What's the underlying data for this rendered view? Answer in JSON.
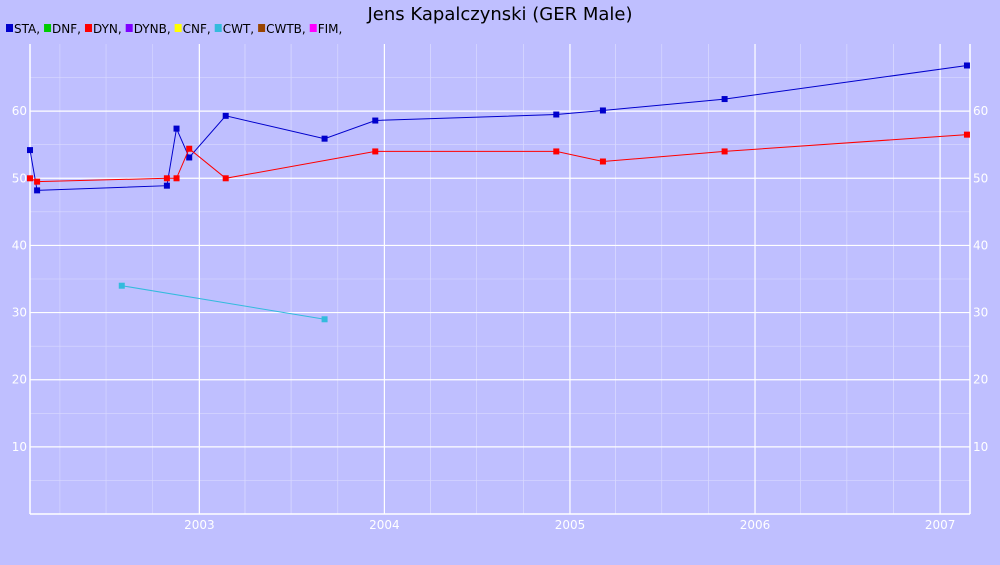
{
  "chart_data": {
    "type": "line",
    "title": "Jens Kapalczynski (GER Male)",
    "xlabel": "",
    "ylabel": "",
    "x_axis": "date",
    "xlim": [
      "2002-02-01",
      "2007-03-01"
    ],
    "ylim": [
      0,
      70
    ],
    "x_ticks": [
      "2003",
      "2004",
      "2005",
      "2006",
      "2007"
    ],
    "x_tick_dates": [
      "2003-01-01",
      "2004-01-01",
      "2005-01-01",
      "2006-01-01",
      "2007-01-01"
    ],
    "y_ticks": [
      "10",
      "20",
      "30",
      "40",
      "50",
      "60"
    ],
    "y_tick_values": [
      10,
      20,
      30,
      40,
      50,
      60
    ],
    "y_axis_both_sides": true,
    "grid": true,
    "legend": {
      "placement": "top-left",
      "entries": [
        {
          "label": "STA,",
          "color": "#0000cc"
        },
        {
          "label": "DNF,",
          "color": "#00cc00"
        },
        {
          "label": "DYN,",
          "color": "#ff0000"
        },
        {
          "label": "DYNB,",
          "color": "#7f00ff"
        },
        {
          "label": "CNF,",
          "color": "#ffff00"
        },
        {
          "label": "CWT,",
          "color": "#33bbdd"
        },
        {
          "label": "CWTB,",
          "color": "#994400"
        },
        {
          "label": "FIM,",
          "color": "#ff00ff"
        }
      ]
    },
    "series": [
      {
        "color": "#0000cc",
        "points": [
          {
            "x": "2002-02-01",
            "y": 54.2
          },
          {
            "x": "2002-02-15",
            "y": 48.2
          },
          {
            "x": "2002-10-29",
            "y": 48.9
          },
          {
            "x": "2002-11-17",
            "y": 57.4
          },
          {
            "x": "2002-12-12",
            "y": 53.1
          },
          {
            "x": "2003-02-22",
            "y": 59.3
          },
          {
            "x": "2003-09-05",
            "y": 55.9
          },
          {
            "x": "2003-12-14",
            "y": 58.6
          },
          {
            "x": "2004-12-05",
            "y": 59.5
          },
          {
            "x": "2005-03-07",
            "y": 60.1
          },
          {
            "x": "2005-11-02",
            "y": 61.8
          },
          {
            "x": "2007-02-23",
            "y": 66.8
          }
        ]
      },
      {
        "color": "#ff0000",
        "points": [
          {
            "x": "2002-02-01",
            "y": 50.0
          },
          {
            "x": "2002-02-15",
            "y": 49.5
          },
          {
            "x": "2002-10-29",
            "y": 50.0
          },
          {
            "x": "2002-11-17",
            "y": 50.0
          },
          {
            "x": "2002-12-12",
            "y": 54.4
          },
          {
            "x": "2003-02-22",
            "y": 50.0
          },
          {
            "x": "2003-12-14",
            "y": 54.0
          },
          {
            "x": "2004-12-05",
            "y": 54.0
          },
          {
            "x": "2005-03-07",
            "y": 52.5
          },
          {
            "x": "2005-11-02",
            "y": 54.0
          },
          {
            "x": "2007-02-23",
            "y": 56.5
          }
        ]
      },
      {
        "color": "#33bbdd",
        "points": [
          {
            "x": "2002-08-01",
            "y": 34.0
          },
          {
            "x": "2003-09-05",
            "y": 29.0
          }
        ]
      }
    ]
  }
}
